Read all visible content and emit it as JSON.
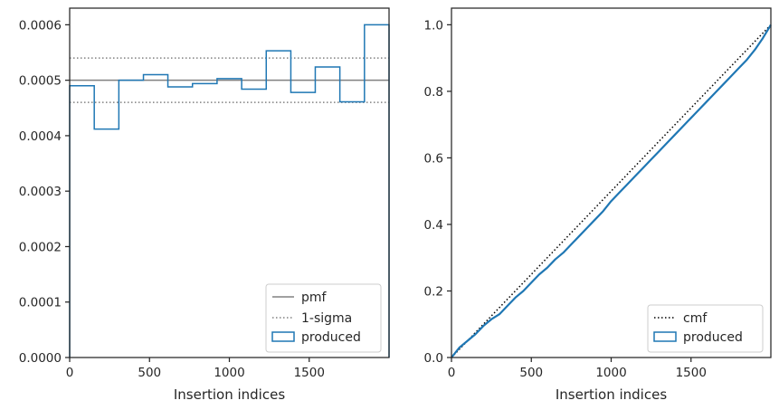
{
  "chart_data": [
    {
      "type": "line",
      "xlabel": "Insertion indices",
      "ylabel": "",
      "xlim": [
        0,
        2000
      ],
      "ylim": [
        0,
        0.00063
      ],
      "xticks": [
        "0",
        "500",
        "1000",
        "1500"
      ],
      "xtick_values": [
        0,
        500,
        1000,
        1500
      ],
      "yticks": [
        "0.0000",
        "0.0001",
        "0.0002",
        "0.0003",
        "0.0004",
        "0.0005",
        "0.0006"
      ],
      "ytick_values": [
        0,
        0.0001,
        0.0002,
        0.0003,
        0.0004,
        0.0005,
        0.0006
      ],
      "grid": false,
      "legend_position": "lower-right",
      "legend": [
        "pmf",
        "1-sigma",
        "produced"
      ],
      "pmf": 0.0005,
      "sigma_band": [
        0.00046,
        0.00054
      ],
      "produced_hist": {
        "edges": [
          0,
          154,
          308,
          462,
          615,
          769,
          923,
          1077,
          1231,
          1385,
          1538,
          1692,
          1846,
          2000
        ],
        "values": [
          0.00049,
          0.000412,
          0.0005,
          0.00051,
          0.000488,
          0.000494,
          0.000503,
          0.000484,
          0.000553,
          0.000478,
          0.000524,
          0.000461,
          0.0006
        ]
      },
      "colors": {
        "pmf": "#808080",
        "sigma": "#808080",
        "produced": "#1f77b4"
      }
    },
    {
      "type": "line",
      "xlabel": "Insertion indices",
      "ylabel": "",
      "xlim": [
        0,
        2000
      ],
      "ylim": [
        0,
        1.05
      ],
      "xticks": [
        "0",
        "500",
        "1000",
        "1500"
      ],
      "xtick_values": [
        0,
        500,
        1000,
        1500
      ],
      "yticks": [
        "0.0",
        "0.2",
        "0.4",
        "0.6",
        "0.8",
        "1.0"
      ],
      "ytick_values": [
        0,
        0.2,
        0.4,
        0.6,
        0.8,
        1.0
      ],
      "grid": false,
      "legend_position": "lower-right",
      "legend": [
        "cmf",
        "produced"
      ],
      "cmf": {
        "x": [
          0,
          2000
        ],
        "y": [
          0,
          1.0
        ]
      },
      "produced": {
        "x": [
          0,
          50,
          100,
          150,
          200,
          250,
          300,
          350,
          400,
          450,
          500,
          550,
          600,
          650,
          700,
          750,
          800,
          850,
          900,
          950,
          1000,
          1050,
          1100,
          1150,
          1200,
          1250,
          1300,
          1350,
          1400,
          1450,
          1500,
          1550,
          1600,
          1650,
          1700,
          1750,
          1800,
          1850,
          1900,
          1950,
          2000
        ],
        "y": [
          0,
          0.03,
          0.05,
          0.07,
          0.095,
          0.115,
          0.13,
          0.155,
          0.18,
          0.2,
          0.225,
          0.25,
          0.27,
          0.295,
          0.315,
          0.34,
          0.365,
          0.39,
          0.415,
          0.44,
          0.47,
          0.495,
          0.52,
          0.545,
          0.57,
          0.595,
          0.62,
          0.645,
          0.67,
          0.695,
          0.72,
          0.745,
          0.77,
          0.795,
          0.82,
          0.845,
          0.87,
          0.895,
          0.925,
          0.96,
          1.0
        ]
      },
      "colors": {
        "cmf": "#000000",
        "produced": "#1f77b4"
      }
    }
  ]
}
